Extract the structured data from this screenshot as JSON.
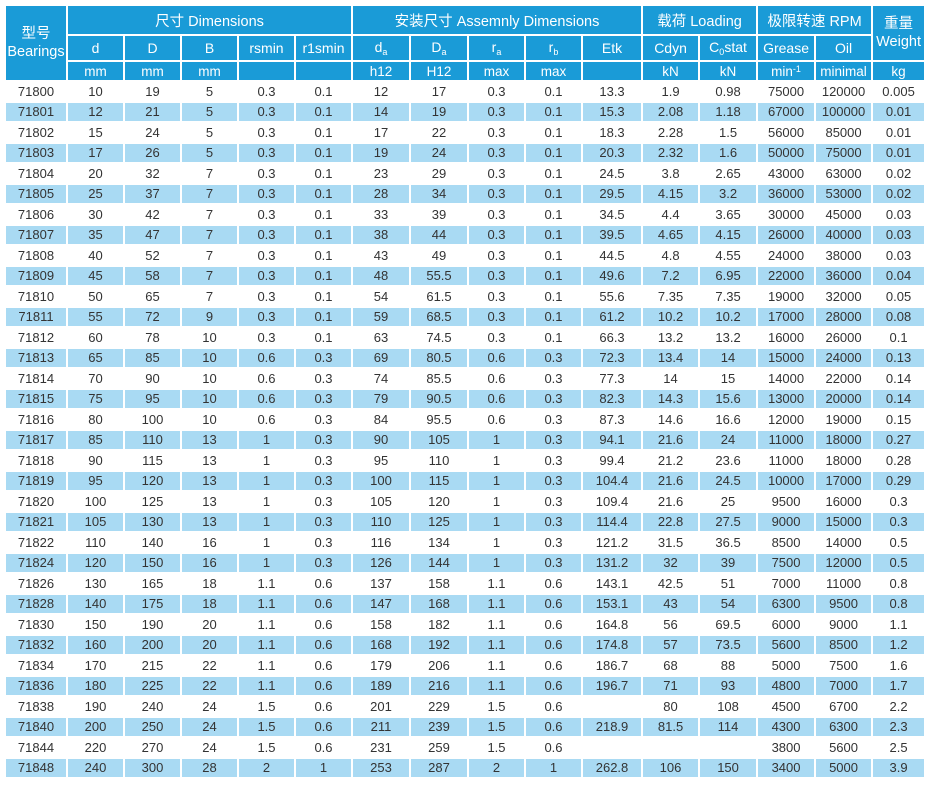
{
  "colors": {
    "header_blue": "#1a9bd7",
    "stripe_blue": "#a9daf3",
    "text_dark": "#333333"
  },
  "table": {
    "groups": {
      "bearings": {
        "line1": "型号",
        "line2": "Bearings"
      },
      "dimensions": "尺寸 Dimensions",
      "assembly": "安装尺寸 Assemnly Dimensions",
      "loading": "载荷 Loading",
      "rpm": "极限转速 RPM",
      "weight": {
        "line1": "重量",
        "line2": "Weight"
      }
    },
    "columns": {
      "d": "d",
      "D": "D",
      "B": "B",
      "rsmin": "rsmin",
      "r1smin": "r1smin",
      "da": {
        "base": "d",
        "sub": "a"
      },
      "Da": {
        "base": "D",
        "sub": "a"
      },
      "ra": {
        "base": "r",
        "sub": "a"
      },
      "rb": {
        "base": "r",
        "sub": "b"
      },
      "Etk": "Etk",
      "Cdyn": "Cdyn",
      "C0stat": {
        "base": "C",
        "sub": "0",
        "rest": "stat"
      },
      "Grease": "Grease",
      "Oil": "Oil"
    },
    "units": {
      "mm": "mm",
      "h12": "h12",
      "H12": "H12",
      "max": "max",
      "kN": "kN",
      "min": {
        "base": "min",
        "sup": "-1"
      },
      "minimal": "minimal",
      "kg": "kg"
    },
    "rows": [
      [
        "71800",
        "10",
        "19",
        "5",
        "0.3",
        "0.1",
        "12",
        "17",
        "0.3",
        "0.1",
        "13.3",
        "1.9",
        "0.98",
        "75000",
        "120000",
        "0.005"
      ],
      [
        "71801",
        "12",
        "21",
        "5",
        "0.3",
        "0.1",
        "14",
        "19",
        "0.3",
        "0.1",
        "15.3",
        "2.08",
        "1.18",
        "67000",
        "100000",
        "0.01"
      ],
      [
        "71802",
        "15",
        "24",
        "5",
        "0.3",
        "0.1",
        "17",
        "22",
        "0.3",
        "0.1",
        "18.3",
        "2.28",
        "1.5",
        "56000",
        "85000",
        "0.01"
      ],
      [
        "71803",
        "17",
        "26",
        "5",
        "0.3",
        "0.1",
        "19",
        "24",
        "0.3",
        "0.1",
        "20.3",
        "2.32",
        "1.6",
        "50000",
        "75000",
        "0.01"
      ],
      [
        "71804",
        "20",
        "32",
        "7",
        "0.3",
        "0.1",
        "23",
        "29",
        "0.3",
        "0.1",
        "24.5",
        "3.8",
        "2.65",
        "43000",
        "63000",
        "0.02"
      ],
      [
        "71805",
        "25",
        "37",
        "7",
        "0.3",
        "0.1",
        "28",
        "34",
        "0.3",
        "0.1",
        "29.5",
        "4.15",
        "3.2",
        "36000",
        "53000",
        "0.02"
      ],
      [
        "71806",
        "30",
        "42",
        "7",
        "0.3",
        "0.1",
        "33",
        "39",
        "0.3",
        "0.1",
        "34.5",
        "4.4",
        "3.65",
        "30000",
        "45000",
        "0.03"
      ],
      [
        "71807",
        "35",
        "47",
        "7",
        "0.3",
        "0.1",
        "38",
        "44",
        "0.3",
        "0.1",
        "39.5",
        "4.65",
        "4.15",
        "26000",
        "40000",
        "0.03"
      ],
      [
        "71808",
        "40",
        "52",
        "7",
        "0.3",
        "0.1",
        "43",
        "49",
        "0.3",
        "0.1",
        "44.5",
        "4.8",
        "4.55",
        "24000",
        "38000",
        "0.03"
      ],
      [
        "71809",
        "45",
        "58",
        "7",
        "0.3",
        "0.1",
        "48",
        "55.5",
        "0.3",
        "0.1",
        "49.6",
        "7.2",
        "6.95",
        "22000",
        "36000",
        "0.04"
      ],
      [
        "71810",
        "50",
        "65",
        "7",
        "0.3",
        "0.1",
        "54",
        "61.5",
        "0.3",
        "0.1",
        "55.6",
        "7.35",
        "7.35",
        "19000",
        "32000",
        "0.05"
      ],
      [
        "71811",
        "55",
        "72",
        "9",
        "0.3",
        "0.1",
        "59",
        "68.5",
        "0.3",
        "0.1",
        "61.2",
        "10.2",
        "10.2",
        "17000",
        "28000",
        "0.08"
      ],
      [
        "71812",
        "60",
        "78",
        "10",
        "0.3",
        "0.1",
        "63",
        "74.5",
        "0.3",
        "0.1",
        "66.3",
        "13.2",
        "13.2",
        "16000",
        "26000",
        "0.1"
      ],
      [
        "71813",
        "65",
        "85",
        "10",
        "0.6",
        "0.3",
        "69",
        "80.5",
        "0.6",
        "0.3",
        "72.3",
        "13.4",
        "14",
        "15000",
        "24000",
        "0.13"
      ],
      [
        "71814",
        "70",
        "90",
        "10",
        "0.6",
        "0.3",
        "74",
        "85.5",
        "0.6",
        "0.3",
        "77.3",
        "14",
        "15",
        "14000",
        "22000",
        "0.14"
      ],
      [
        "71815",
        "75",
        "95",
        "10",
        "0.6",
        "0.3",
        "79",
        "90.5",
        "0.6",
        "0.3",
        "82.3",
        "14.3",
        "15.6",
        "13000",
        "20000",
        "0.14"
      ],
      [
        "71816",
        "80",
        "100",
        "10",
        "0.6",
        "0.3",
        "84",
        "95.5",
        "0.6",
        "0.3",
        "87.3",
        "14.6",
        "16.6",
        "12000",
        "19000",
        "0.15"
      ],
      [
        "71817",
        "85",
        "110",
        "13",
        "1",
        "0.3",
        "90",
        "105",
        "1",
        "0.3",
        "94.1",
        "21.6",
        "24",
        "11000",
        "18000",
        "0.27"
      ],
      [
        "71818",
        "90",
        "115",
        "13",
        "1",
        "0.3",
        "95",
        "110",
        "1",
        "0.3",
        "99.4",
        "21.2",
        "23.6",
        "11000",
        "18000",
        "0.28"
      ],
      [
        "71819",
        "95",
        "120",
        "13",
        "1",
        "0.3",
        "100",
        "115",
        "1",
        "0.3",
        "104.4",
        "21.6",
        "24.5",
        "10000",
        "17000",
        "0.29"
      ],
      [
        "71820",
        "100",
        "125",
        "13",
        "1",
        "0.3",
        "105",
        "120",
        "1",
        "0.3",
        "109.4",
        "21.6",
        "25",
        "9500",
        "16000",
        "0.3"
      ],
      [
        "71821",
        "105",
        "130",
        "13",
        "1",
        "0.3",
        "110",
        "125",
        "1",
        "0.3",
        "114.4",
        "22.8",
        "27.5",
        "9000",
        "15000",
        "0.3"
      ],
      [
        "71822",
        "110",
        "140",
        "16",
        "1",
        "0.3",
        "116",
        "134",
        "1",
        "0.3",
        "121.2",
        "31.5",
        "36.5",
        "8500",
        "14000",
        "0.5"
      ],
      [
        "71824",
        "120",
        "150",
        "16",
        "1",
        "0.3",
        "126",
        "144",
        "1",
        "0.3",
        "131.2",
        "32",
        "39",
        "7500",
        "12000",
        "0.5"
      ],
      [
        "71826",
        "130",
        "165",
        "18",
        "1.1",
        "0.6",
        "137",
        "158",
        "1.1",
        "0.6",
        "143.1",
        "42.5",
        "51",
        "7000",
        "11000",
        "0.8"
      ],
      [
        "71828",
        "140",
        "175",
        "18",
        "1.1",
        "0.6",
        "147",
        "168",
        "1.1",
        "0.6",
        "153.1",
        "43",
        "54",
        "6300",
        "9500",
        "0.8"
      ],
      [
        "71830",
        "150",
        "190",
        "20",
        "1.1",
        "0.6",
        "158",
        "182",
        "1.1",
        "0.6",
        "164.8",
        "56",
        "69.5",
        "6000",
        "9000",
        "1.1"
      ],
      [
        "71832",
        "160",
        "200",
        "20",
        "1.1",
        "0.6",
        "168",
        "192",
        "1.1",
        "0.6",
        "174.8",
        "57",
        "73.5",
        "5600",
        "8500",
        "1.2"
      ],
      [
        "71834",
        "170",
        "215",
        "22",
        "1.1",
        "0.6",
        "179",
        "206",
        "1.1",
        "0.6",
        "186.7",
        "68",
        "88",
        "5000",
        "7500",
        "1.6"
      ],
      [
        "71836",
        "180",
        "225",
        "22",
        "1.1",
        "0.6",
        "189",
        "216",
        "1.1",
        "0.6",
        "196.7",
        "71",
        "93",
        "4800",
        "7000",
        "1.7"
      ],
      [
        "71838",
        "190",
        "240",
        "24",
        "1.5",
        "0.6",
        "201",
        "229",
        "1.5",
        "0.6",
        "",
        "80",
        "108",
        "4500",
        "6700",
        "2.2"
      ],
      [
        "71840",
        "200",
        "250",
        "24",
        "1.5",
        "0.6",
        "211",
        "239",
        "1.5",
        "0.6",
        "218.9",
        "81.5",
        "114",
        "4300",
        "6300",
        "2.3"
      ],
      [
        "71844",
        "220",
        "270",
        "24",
        "1.5",
        "0.6",
        "231",
        "259",
        "1.5",
        "0.6",
        "",
        "",
        "",
        "3800",
        "5600",
        "2.5"
      ],
      [
        "71848",
        "240",
        "300",
        "28",
        "2",
        "1",
        "253",
        "287",
        "2",
        "1",
        "262.8",
        "106",
        "150",
        "3400",
        "5000",
        "3.9"
      ]
    ]
  }
}
